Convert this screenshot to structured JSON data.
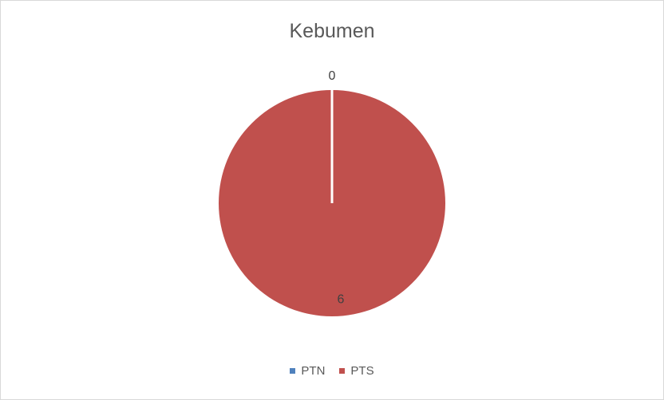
{
  "chart_data": {
    "type": "pie",
    "title": "Kebumen",
    "categories": [
      "PTN",
      "PTS"
    ],
    "values": [
      0,
      6
    ],
    "colors": [
      "#4f81bd",
      "#c0504d"
    ],
    "data_labels": [
      "0",
      "6"
    ],
    "legend_position": "bottom"
  }
}
